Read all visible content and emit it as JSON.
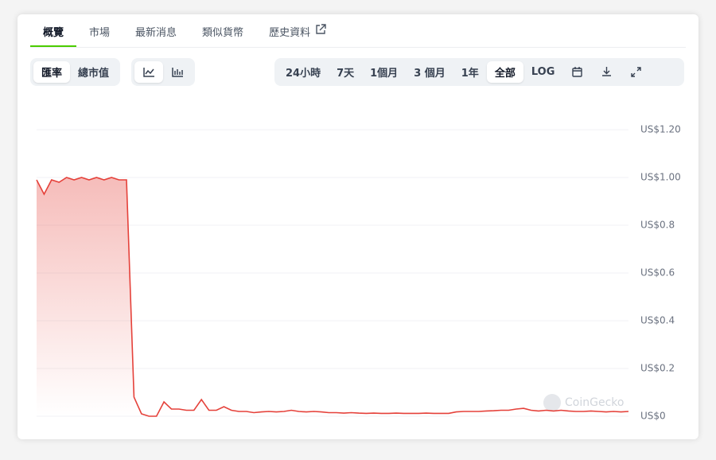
{
  "tabs": [
    "概覽",
    "市場",
    "最新消息",
    "類似貨幣",
    "歷史資料"
  ],
  "active_tab": 0,
  "metric_toggle": [
    "匯率",
    "總市值"
  ],
  "active_metric": 0,
  "ranges": [
    "24小時",
    "7天",
    "1個月",
    "3 個月",
    "1年",
    "全部",
    "LOG"
  ],
  "active_range": 5,
  "chart_data": {
    "type": "line",
    "series": [
      {
        "color": "#e5413a",
        "values": [
          0.99,
          0.93,
          0.99,
          0.98,
          1.0,
          0.99,
          1.0,
          0.99,
          1.0,
          0.99,
          1.0,
          0.99,
          0.99,
          0.08,
          0.01,
          0.0,
          0.0,
          0.06,
          0.03,
          0.03,
          0.025,
          0.025,
          0.07,
          0.025,
          0.025,
          0.04,
          0.025,
          0.02,
          0.02,
          0.015,
          0.018,
          0.02,
          0.018,
          0.02,
          0.025,
          0.02,
          0.018,
          0.02,
          0.018,
          0.015,
          0.015,
          0.013,
          0.015,
          0.013,
          0.012,
          0.013,
          0.012,
          0.012,
          0.013,
          0.012,
          0.012,
          0.012,
          0.013,
          0.012,
          0.012,
          0.012,
          0.018,
          0.02,
          0.02,
          0.02,
          0.022,
          0.023,
          0.025,
          0.025,
          0.03,
          0.033,
          0.025,
          0.022,
          0.025,
          0.022,
          0.025,
          0.022,
          0.02,
          0.02,
          0.022,
          0.02,
          0.018,
          0.02,
          0.018,
          0.02
        ]
      }
    ],
    "ylim": [
      0,
      1.2
    ],
    "yticks": [
      {
        "value": 0,
        "label": "US$0"
      },
      {
        "value": 0.2,
        "label": "US$0.2"
      },
      {
        "value": 0.4,
        "label": "US$0.4"
      },
      {
        "value": 0.6,
        "label": "US$0.6"
      },
      {
        "value": 0.8,
        "label": "US$0.8"
      },
      {
        "value": 1.0,
        "label": "US$1.00"
      },
      {
        "value": 1.2,
        "label": "US$1.20"
      }
    ],
    "grid": true,
    "watermark": "CoinGecko"
  }
}
